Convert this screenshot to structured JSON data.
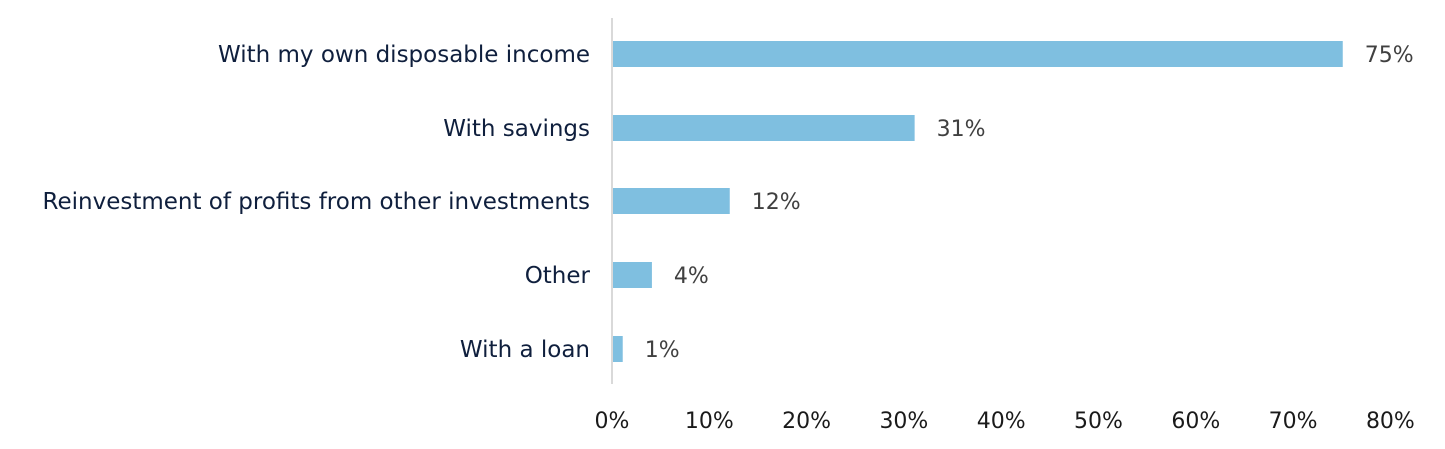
{
  "chart_data": {
    "type": "bar",
    "orientation": "horizontal",
    "categories": [
      "With my own disposable income",
      "With savings",
      "Reinvestment of profits from other investments",
      "Other",
      "With a loan"
    ],
    "values": [
      75,
      31,
      12,
      4,
      1
    ],
    "value_labels": [
      "75%",
      "31%",
      "12%",
      "4%",
      "1%"
    ],
    "x_ticks": [
      "0%",
      "10%",
      "20%",
      "30%",
      "40%",
      "50%",
      "60%",
      "70%",
      "80%"
    ],
    "xlim": [
      0,
      80
    ],
    "title": "",
    "xlabel": "",
    "ylabel": "",
    "grid": false,
    "legend": "none",
    "bar_color": "#7fbfe0",
    "axis_color": "#d9d9d9"
  }
}
